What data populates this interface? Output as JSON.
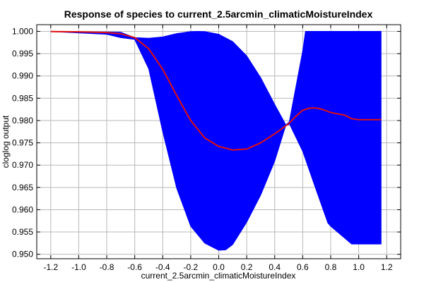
{
  "chart_data": {
    "type": "line",
    "title": "Response of species to current_2.5arcmin_climaticMoistureIndex",
    "xlabel": "current_2.5arcmin_climaticMoistureIndex",
    "ylabel": "cloglog output",
    "xlim": [
      -1.3,
      1.3
    ],
    "ylim": [
      0.949,
      1.0015
    ],
    "x_ticks": [
      "-1.2",
      "-1.0",
      "-0.8",
      "-0.6",
      "-0.4",
      "-0.2",
      "0.0",
      "0.2",
      "0.4",
      "0.6",
      "0.8",
      "1.0",
      "1.2"
    ],
    "y_ticks": [
      "0.950",
      "0.955",
      "0.960",
      "0.965",
      "0.970",
      "0.975",
      "0.980",
      "0.985",
      "0.990",
      "0.995",
      "1.000"
    ],
    "grid": true,
    "series": [
      {
        "role": "band-upper",
        "color": "#0000ff",
        "x": [
          -1.2,
          -0.8,
          -0.7,
          -0.6,
          -0.5,
          -0.4,
          -0.3,
          -0.2,
          -0.15,
          -0.1,
          0.0,
          0.1,
          0.2,
          0.3,
          0.4,
          0.48,
          0.5,
          0.6,
          0.62,
          0.8,
          1.0,
          1.16
        ],
        "y": [
          0.99995,
          0.99985,
          0.9998,
          0.9986,
          0.99845,
          0.99875,
          0.9995,
          0.99995,
          1.0,
          0.99995,
          0.99935,
          0.9977,
          0.9945,
          0.9896,
          0.9836,
          0.979,
          0.979,
          0.9956,
          1.0,
          1.0,
          1.0,
          1.0
        ]
      },
      {
        "role": "band-lower",
        "color": "#0000ff",
        "x": [
          -1.2,
          -0.8,
          -0.7,
          -0.6,
          -0.5,
          -0.4,
          -0.3,
          -0.2,
          -0.1,
          0.0,
          0.05,
          0.1,
          0.2,
          0.3,
          0.4,
          0.48,
          0.5,
          0.6,
          0.7,
          0.78,
          0.8,
          0.95,
          1.0,
          1.16
        ],
        "y": [
          0.99995,
          0.99935,
          0.9986,
          0.9982,
          0.9916,
          0.9775,
          0.9648,
          0.9563,
          0.9525,
          0.9509,
          0.951,
          0.9522,
          0.9572,
          0.9633,
          0.9709,
          0.979,
          0.9796,
          0.9731,
          0.9641,
          0.957,
          0.9563,
          0.9523,
          0.9523,
          0.9523
        ]
      },
      {
        "role": "mean",
        "color": "#e01010",
        "x": [
          -1.2,
          -1.0,
          -0.8,
          -0.7,
          -0.6,
          -0.5,
          -0.4,
          -0.3,
          -0.2,
          -0.1,
          0.0,
          0.1,
          0.2,
          0.3,
          0.4,
          0.5,
          0.55,
          0.6,
          0.65,
          0.7,
          0.75,
          0.8,
          0.9,
          0.95,
          1.0,
          1.16
        ],
        "y": [
          0.99995,
          0.9999,
          0.99975,
          0.99945,
          0.9986,
          0.9961,
          0.9915,
          0.9856,
          0.98,
          0.9761,
          0.9742,
          0.9734,
          0.9736,
          0.975,
          0.977,
          0.9793,
          0.9809,
          0.9823,
          0.9828,
          0.9828,
          0.9824,
          0.9818,
          0.9812,
          0.9804,
          0.9802,
          0.9802
        ]
      }
    ]
  }
}
